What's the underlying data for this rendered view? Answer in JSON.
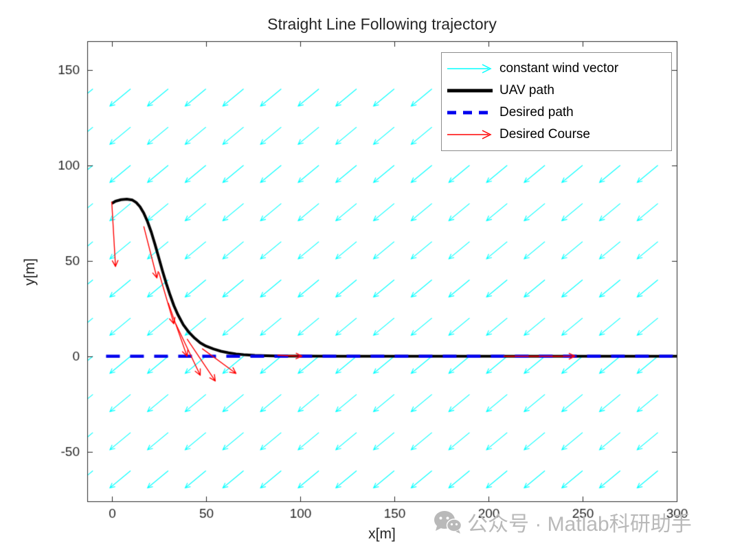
{
  "watermark": {
    "text": "公众号 · Matlab科研助手",
    "icon": "wechat-logo-icon",
    "color": "#b9b9b9"
  },
  "chart_data": {
    "type": "line",
    "title": "Straight Line Following trajectory",
    "xlabel": "x[m]",
    "ylabel": "y[m]",
    "xlim": [
      -13,
      300
    ],
    "ylim": [
      -76,
      165
    ],
    "xticks": [
      0,
      50,
      100,
      150,
      200,
      250,
      300
    ],
    "yticks": [
      -50,
      0,
      50,
      100,
      150
    ],
    "grid": false,
    "axis_color": "#262626",
    "legend": {
      "position": "top-right",
      "entries": [
        {
          "label": "constant wind vector",
          "color": "#00FFFF",
          "style": "arrow"
        },
        {
          "label": "UAV path",
          "color": "#000000",
          "style": "line-thick"
        },
        {
          "label": "Desired path",
          "color": "#0000EE",
          "style": "line-dashed"
        },
        {
          "label": "Desired Course",
          "color": "#FF0000",
          "style": "arrow"
        }
      ]
    },
    "wind_field": {
      "color": "#00FFFF",
      "x_start": -10,
      "x_end": 290,
      "x_step": 20,
      "y_start": -60,
      "y_end": 140,
      "y_step": 20,
      "u": -11,
      "v": -9
    },
    "series": [
      {
        "name": "UAV path",
        "color": "#000000",
        "width": 4,
        "points": [
          [
            0,
            80
          ],
          [
            2,
            81.2
          ],
          [
            5,
            82
          ],
          [
            8,
            82.3
          ],
          [
            11,
            81.8
          ],
          [
            13,
            80.5
          ],
          [
            15,
            78.3
          ],
          [
            17,
            75
          ],
          [
            19,
            70.5
          ],
          [
            21,
            65
          ],
          [
            23,
            58.5
          ],
          [
            25,
            51.5
          ],
          [
            27,
            44.5
          ],
          [
            29,
            38
          ],
          [
            31,
            32
          ],
          [
            33,
            26.5
          ],
          [
            35,
            22
          ],
          [
            38,
            16.5
          ],
          [
            41,
            12.5
          ],
          [
            44,
            9.5
          ],
          [
            47,
            7
          ],
          [
            50,
            5.3
          ],
          [
            54,
            3.8
          ],
          [
            58,
            2.6
          ],
          [
            62,
            1.8
          ],
          [
            66,
            1.2
          ],
          [
            70,
            0.8
          ],
          [
            76,
            0.45
          ],
          [
            82,
            0.25
          ],
          [
            90,
            0.1
          ],
          [
            100,
            0.05
          ],
          [
            120,
            0
          ],
          [
            300,
            0
          ]
        ]
      },
      {
        "name": "Desired path",
        "color": "#0000EE",
        "width": 4.5,
        "dash": [
          20,
          15
        ],
        "points": [
          [
            -3,
            0
          ],
          [
            300,
            0
          ]
        ]
      }
    ],
    "course_arrows": {
      "color": "#FF0000",
      "arrows": [
        [
          0,
          81,
          2,
          47
        ],
        [
          17,
          68,
          24,
          41
        ],
        [
          25,
          44,
          33,
          17
        ],
        [
          30,
          28,
          40,
          0
        ],
        [
          34,
          17,
          47,
          -10
        ],
        [
          40,
          9,
          55,
          -13
        ],
        [
          48,
          4,
          66,
          -9
        ],
        [
          88,
          0.5,
          101,
          0
        ],
        [
          208,
          0,
          246,
          0
        ]
      ]
    }
  }
}
